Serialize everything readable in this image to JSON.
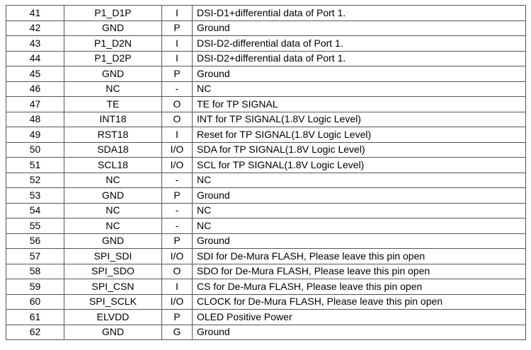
{
  "rows": [
    [
      "41",
      "P1_D1P",
      "I",
      "DSI-D1+differential data of Port 1."
    ],
    [
      "42",
      "GND",
      "P",
      "Ground"
    ],
    [
      "43",
      "P1_D2N",
      "I",
      "DSI-D2-differential data of Port 1."
    ],
    [
      "44",
      "P1_D2P",
      "I",
      "DSI-D2+differential data of Port 1."
    ],
    [
      "45",
      "GND",
      "P",
      "Ground"
    ],
    [
      "46",
      "NC",
      "-",
      "NC"
    ],
    [
      "47",
      "TE",
      "O",
      "TE for TP SIGNAL"
    ],
    [
      "48",
      "INT18",
      "O",
      "INT for TP SIGNAL(1.8V Logic Level)"
    ],
    [
      "49",
      "RST18",
      "I",
      "Reset for TP SIGNAL(1.8V Logic Level)"
    ],
    [
      "50",
      "SDA18",
      "I/O",
      "SDA for TP SIGNAL(1.8V Logic Level)"
    ],
    [
      "51",
      "SCL18",
      "I/O",
      "SCL for TP SIGNAL(1.8V Logic Level)"
    ],
    [
      "52",
      "NC",
      "-",
      "NC"
    ],
    [
      "53",
      "GND",
      "P",
      "Ground"
    ],
    [
      "54",
      "NC",
      "-",
      "NC"
    ],
    [
      "55",
      "NC",
      "-",
      "NC"
    ],
    [
      "56",
      "GND",
      "P",
      "Ground"
    ],
    [
      "57",
      "SPI_SDI",
      "I/O",
      "SDI for De-Mura FLASH, Please leave this pin open"
    ],
    [
      "58",
      "SPI_SDO",
      "O",
      "SDO for De-Mura FLASH, Please leave this pin open"
    ],
    [
      "59",
      "SPI_CSN",
      "I",
      "CS for De-Mura FLASH, Please leave this pin open"
    ],
    [
      "60",
      "SPI_SCLK",
      "I/O",
      "CLOCK for De-Mura FLASH, Please leave this pin open"
    ],
    [
      "61",
      "ELVDD",
      "P",
      "OLED Positive Power"
    ],
    [
      "62",
      "GND",
      "G",
      "Ground"
    ]
  ]
}
